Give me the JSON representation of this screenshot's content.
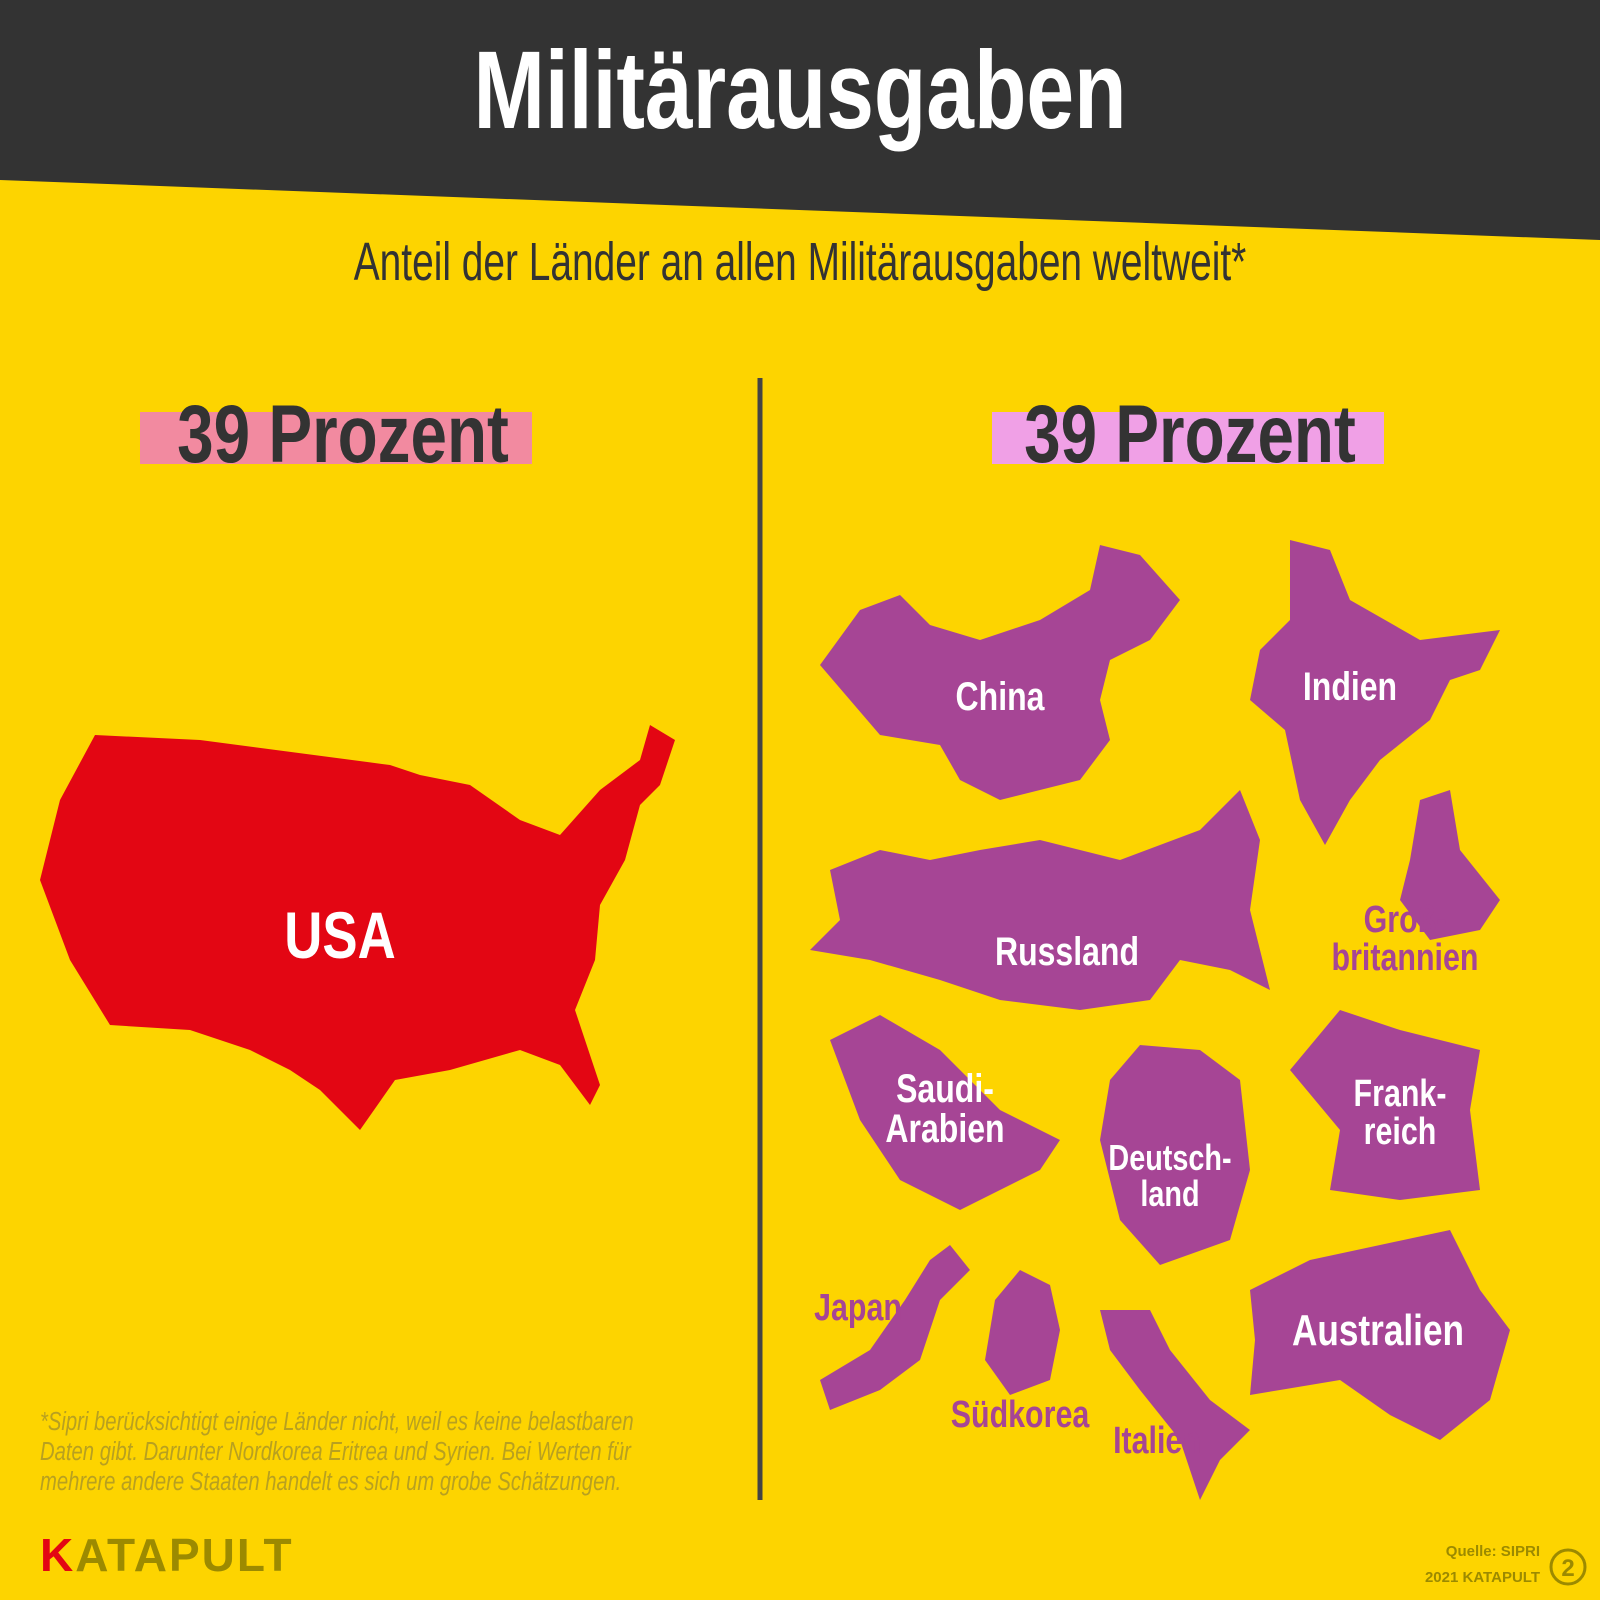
{
  "header": {
    "title": "Militärausgaben",
    "subtitle": "Anteil der Länder an allen Militärausgaben weltweit*"
  },
  "left": {
    "share": "39 Prozent",
    "countries": [
      [
        "USA"
      ]
    ]
  },
  "right": {
    "share": "39 Prozent",
    "countries": [
      [
        "China"
      ],
      [
        "Indien"
      ],
      [
        "Russland"
      ],
      [
        "Groß-",
        "britannien"
      ],
      [
        "Saudi-",
        "Arabien"
      ],
      [
        "Deutsch-",
        "land"
      ],
      [
        "Frank-",
        "reich"
      ],
      [
        "Japan"
      ],
      [
        "Südkorea"
      ],
      [
        "Italien"
      ],
      [
        "Australien"
      ]
    ]
  },
  "footnote": [
    "*Sipri berücksichtigt einige Länder nicht, weil es keine belastbaren",
    "Daten gibt. Darunter Nordkorea Eritrea und Syrien. Bei Werten für",
    "mehrere andere Staaten handelt es sich um grobe Schätzungen."
  ],
  "footer": {
    "brand": "KATAPULT",
    "source": "Quelle: SIPRI",
    "copyright": "2021 KATAPULT",
    "issue": "2"
  }
}
